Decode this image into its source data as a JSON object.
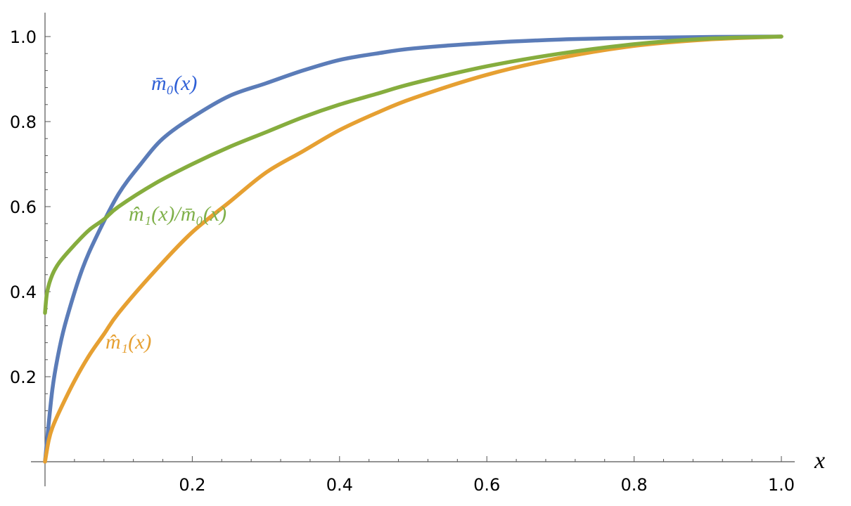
{
  "chart_data": {
    "type": "line",
    "title": "",
    "xlabel": "x",
    "ylabel": "",
    "xlim": [
      0,
      1.0
    ],
    "ylim": [
      0,
      1.0
    ],
    "grid": false,
    "legend": "none",
    "x_ticks": [
      {
        "value": 0.2,
        "label": "0.2"
      },
      {
        "value": 0.4,
        "label": "0.4"
      },
      {
        "value": 0.6,
        "label": "0.6"
      },
      {
        "value": 0.8,
        "label": "0.8"
      },
      {
        "value": 1.0,
        "label": "1.0"
      }
    ],
    "y_ticks": [
      {
        "value": 0.2,
        "label": "0.2"
      },
      {
        "value": 0.4,
        "label": "0.4"
      },
      {
        "value": 0.6,
        "label": "0.6"
      },
      {
        "value": 0.8,
        "label": "0.8"
      },
      {
        "value": 1.0,
        "label": "1.0"
      }
    ],
    "series": [
      {
        "label": "m̄₀(x)",
        "color": "#5b7cb8",
        "label_color": "#2e5fd6",
        "x": [
          0,
          0.01,
          0.02,
          0.03,
          0.05,
          0.07,
          0.1,
          0.13,
          0.16,
          0.2,
          0.25,
          0.3,
          0.35,
          0.4,
          0.45,
          0.5,
          0.6,
          0.7,
          0.8,
          0.9,
          1.0
        ],
        "y": [
          0.0,
          0.17,
          0.27,
          0.34,
          0.45,
          0.53,
          0.63,
          0.7,
          0.76,
          0.81,
          0.86,
          0.89,
          0.92,
          0.945,
          0.96,
          0.972,
          0.985,
          0.993,
          0.997,
          0.999,
          1.0
        ]
      },
      {
        "label": "m̂₁(x)",
        "color": "#e6a032",
        "label_color": "#e6a032",
        "x": [
          0,
          0.005,
          0.01,
          0.02,
          0.04,
          0.06,
          0.08,
          0.1,
          0.15,
          0.2,
          0.25,
          0.3,
          0.35,
          0.4,
          0.45,
          0.5,
          0.6,
          0.7,
          0.8,
          0.9,
          1.0
        ],
        "y": [
          0.0,
          0.05,
          0.08,
          0.12,
          0.19,
          0.25,
          0.3,
          0.35,
          0.45,
          0.54,
          0.61,
          0.68,
          0.73,
          0.78,
          0.82,
          0.855,
          0.91,
          0.95,
          0.978,
          0.993,
          1.0
        ]
      },
      {
        "label": "m̂₁(x)/m̄₀(x)",
        "color": "#86ad3e",
        "label_color": "#7fb04a",
        "x": [
          0,
          0.003,
          0.01,
          0.02,
          0.04,
          0.06,
          0.08,
          0.1,
          0.15,
          0.2,
          0.25,
          0.3,
          0.35,
          0.4,
          0.45,
          0.5,
          0.6,
          0.7,
          0.8,
          0.9,
          1.0
        ],
        "y": [
          0.35,
          0.4,
          0.44,
          0.47,
          0.51,
          0.545,
          0.57,
          0.6,
          0.655,
          0.7,
          0.74,
          0.775,
          0.81,
          0.84,
          0.865,
          0.89,
          0.93,
          0.96,
          0.982,
          0.995,
          1.0
        ]
      }
    ]
  }
}
